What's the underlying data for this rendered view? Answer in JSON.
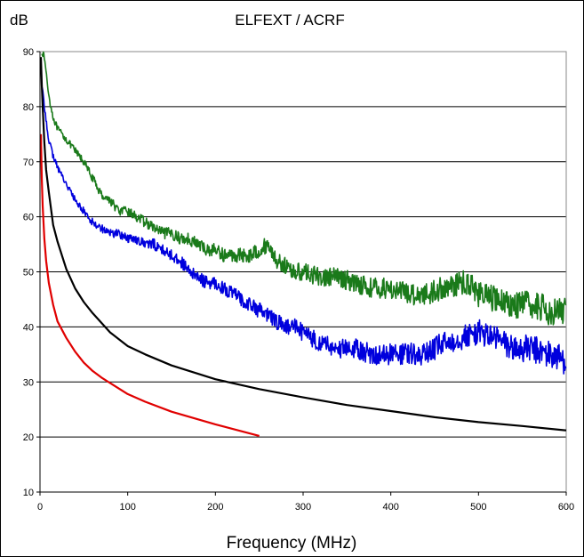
{
  "chart_data": {
    "type": "line",
    "title": "ELFEXT / ACRF",
    "ylabel": "dB",
    "xlabel": "Frequency (MHz)",
    "xlim": [
      0,
      600
    ],
    "ylim": [
      10,
      90
    ],
    "x_ticks": [
      "0",
      "100",
      "200",
      "300",
      "400",
      "500",
      "600"
    ],
    "y_ticks": [
      "10",
      "20",
      "30",
      "40",
      "50",
      "60",
      "70",
      "80",
      "90"
    ],
    "grid": "horizontal",
    "legend": "none",
    "series": [
      {
        "color": "#1a7a1a",
        "style": "noisy",
        "x": [
          2,
          5,
          10,
          15,
          20,
          30,
          40,
          50,
          60,
          70,
          80,
          90,
          100,
          110,
          120,
          130,
          140,
          150,
          160,
          170,
          180,
          190,
          200,
          210,
          220,
          230,
          240,
          250,
          260,
          270,
          280,
          290,
          300,
          320,
          340,
          360,
          380,
          400,
          420,
          440,
          460,
          480,
          490,
          500,
          520,
          540,
          560,
          580,
          600
        ],
        "y": [
          90,
          89,
          82,
          78,
          76,
          74,
          72,
          70,
          67,
          64,
          63,
          61,
          61,
          60,
          59,
          58,
          57,
          57,
          56,
          56,
          55,
          54,
          54,
          53,
          53,
          53,
          53,
          54,
          55,
          52,
          51,
          50,
          50,
          49,
          49,
          48,
          47,
          47,
          46,
          46,
          47,
          48,
          48,
          46,
          45,
          44,
          44,
          43,
          43
        ]
      },
      {
        "color": "#0000dd",
        "style": "noisy",
        "x": [
          2,
          5,
          10,
          15,
          20,
          30,
          40,
          50,
          60,
          70,
          80,
          90,
          100,
          110,
          120,
          130,
          140,
          150,
          160,
          170,
          180,
          190,
          200,
          210,
          220,
          230,
          240,
          250,
          260,
          270,
          280,
          290,
          300,
          320,
          340,
          360,
          380,
          400,
          420,
          440,
          460,
          480,
          500,
          520,
          540,
          560,
          580,
          600
        ],
        "y": [
          84,
          80,
          74,
          71,
          69,
          66,
          63,
          61,
          59,
          58,
          57,
          57,
          56,
          56,
          55,
          55,
          54,
          53,
          52,
          50,
          49,
          48,
          48,
          47,
          46,
          45,
          44,
          43,
          42,
          41,
          40,
          40,
          39,
          37,
          36,
          36,
          35,
          35,
          35,
          35,
          37,
          38,
          39,
          38,
          36,
          36,
          35,
          34
        ]
      },
      {
        "color": "#000000",
        "style": "smooth",
        "x": [
          1,
          2,
          3,
          5,
          7,
          10,
          15,
          20,
          30,
          40,
          50,
          60,
          80,
          100,
          120,
          150,
          200,
          250,
          300,
          350,
          400,
          450,
          500,
          550,
          600
        ],
        "y": [
          89,
          84,
          80,
          73.5,
          68.5,
          64.5,
          58.5,
          55.5,
          50.5,
          47,
          44.5,
          42.5,
          39,
          36.5,
          35,
          33,
          30.5,
          28.7,
          27.2,
          25.8,
          24.7,
          23.6,
          22.7,
          22,
          21.2
        ]
      },
      {
        "color": "#e00000",
        "style": "smooth",
        "x": [
          1,
          2,
          3,
          5,
          7,
          10,
          15,
          20,
          30,
          40,
          50,
          60,
          70,
          80,
          100,
          120,
          150,
          200,
          250
        ],
        "y": [
          75,
          67,
          62,
          56,
          52,
          48,
          44,
          41,
          38,
          35.5,
          33.5,
          32,
          30.8,
          29.8,
          27.8,
          26.4,
          24.6,
          22.3,
          20.2
        ]
      }
    ]
  }
}
